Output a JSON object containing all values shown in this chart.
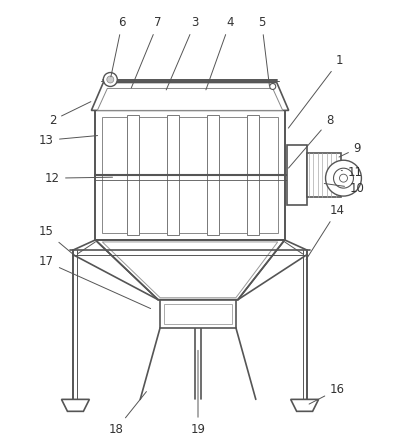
{
  "bg_color": "#ffffff",
  "line_color": "#555555",
  "hatch_color": "#888888",
  "label_color": "#333333",
  "label_fontsize": 8.5,
  "lw_main": 1.2,
  "lw_thin": 0.7
}
